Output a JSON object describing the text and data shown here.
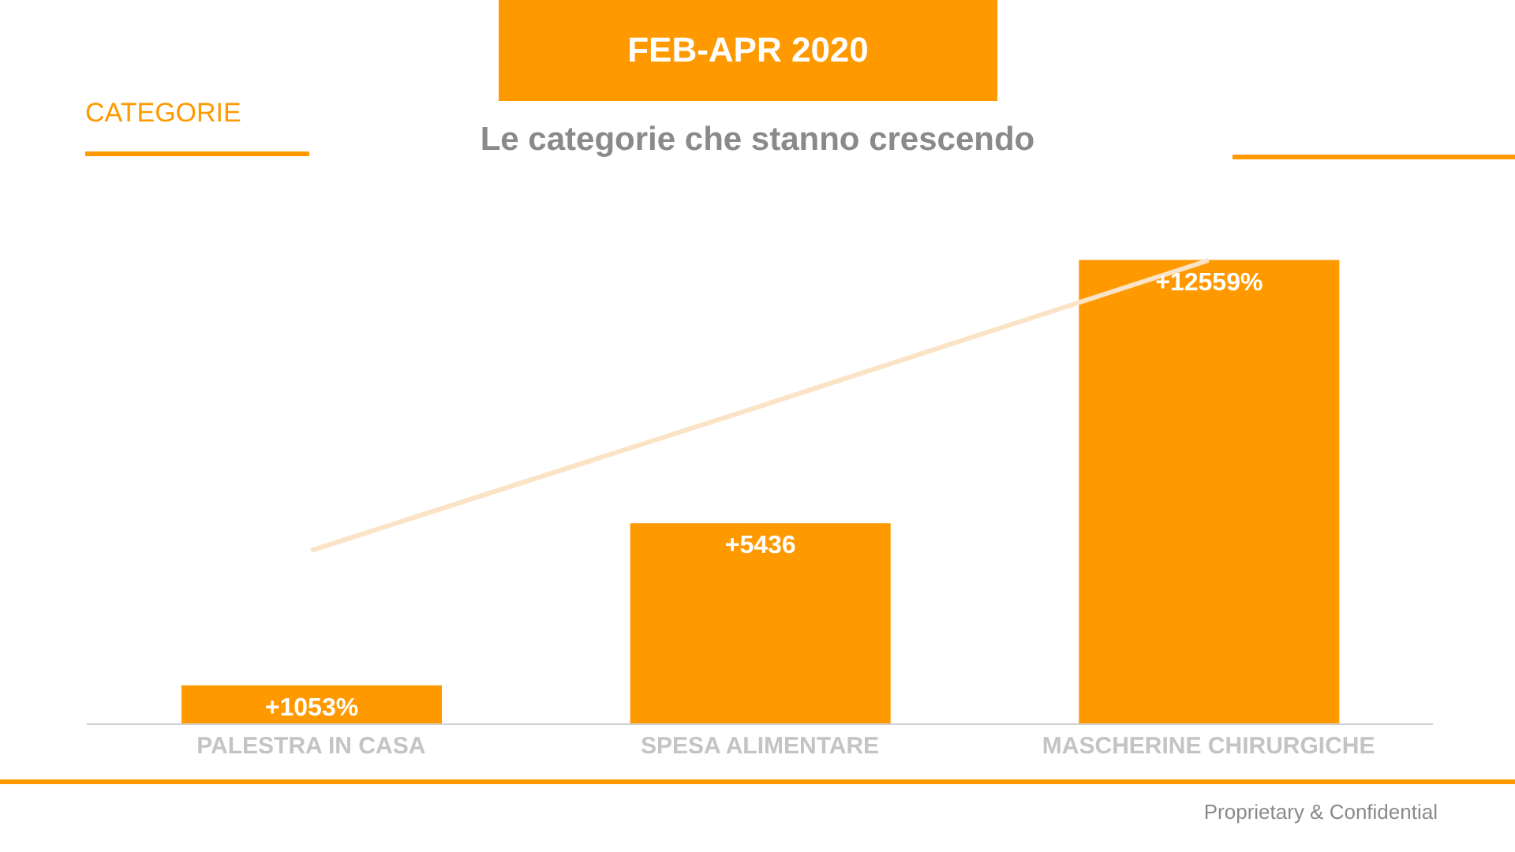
{
  "chart_data": {
    "type": "bar",
    "title": "FEB-APR 2020",
    "subtitle": "Le categorie che stanno crescendo",
    "annotations": [
      "CATEGORIE",
      "Proprietary & Confidential"
    ],
    "categories": [
      "PALESTRA IN CASA",
      "SPESA ALIMENTARE",
      "MASCHERINE CHIRURGICHE"
    ],
    "series": [
      {
        "type": "line",
        "color": "#fbe3c6",
        "values": [
          4700,
          8600,
          12550
        ]
      },
      {
        "color": "#ff9900",
        "values": [
          1053,
          5436,
          12559
        ],
        "value_labels": [
          "+1053%",
          "+5436",
          "+12559%"
        ]
      }
    ],
    "tick_labels": "x",
    "legend": false,
    "marker": "none"
  }
}
